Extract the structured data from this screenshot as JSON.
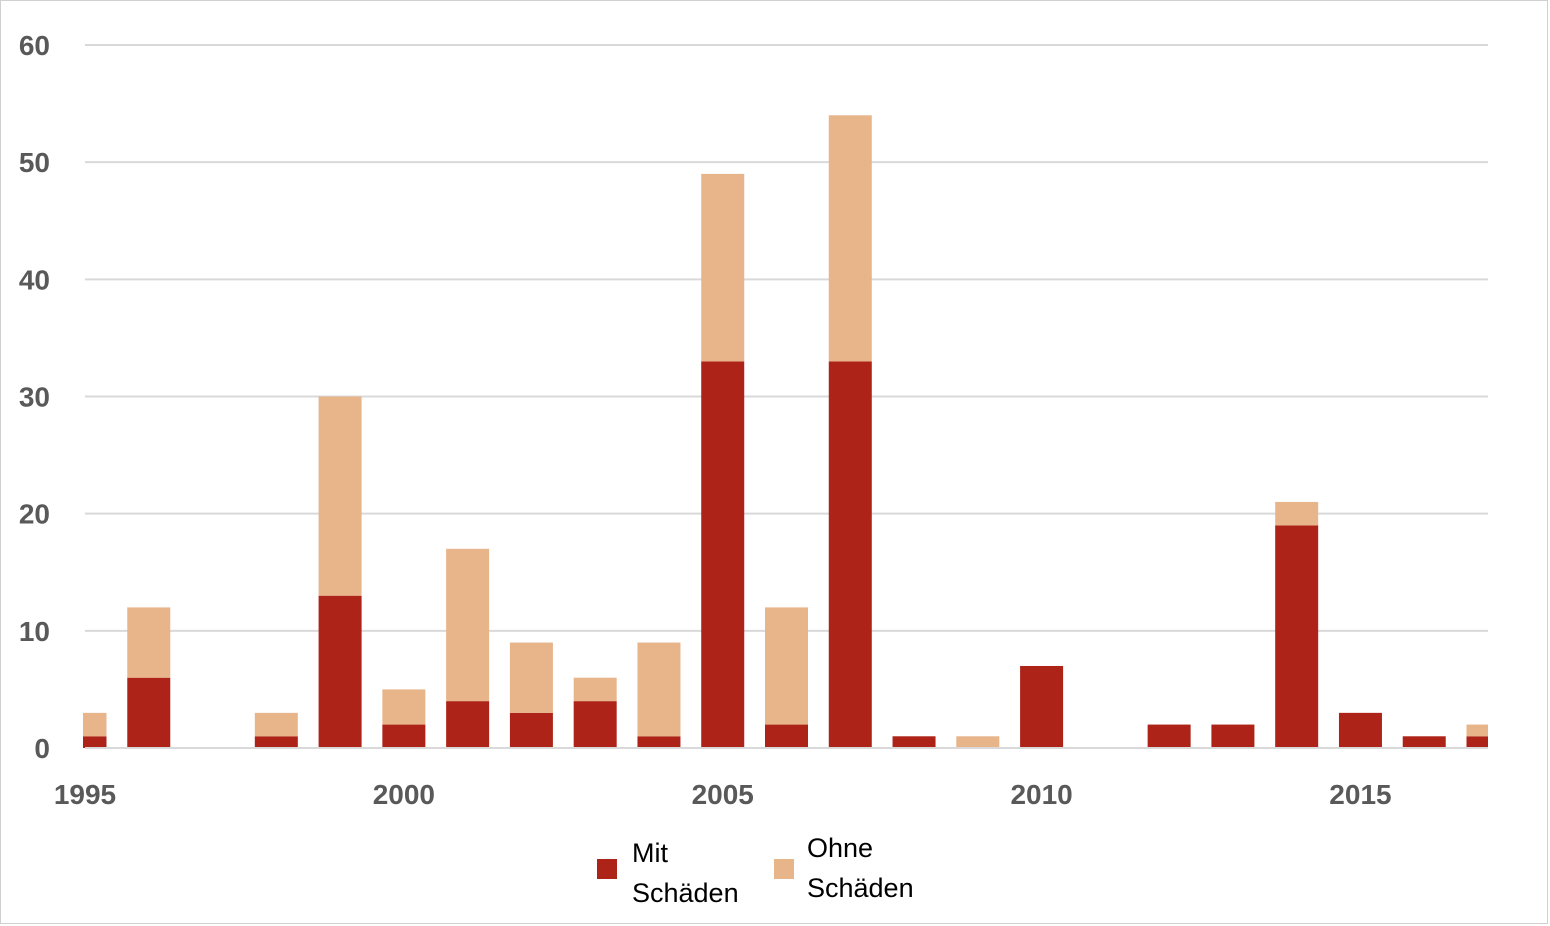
{
  "chart_data": {
    "type": "bar",
    "stacked": true,
    "title": "",
    "xlabel": "",
    "ylabel": "",
    "x": [
      1995,
      1996,
      1997,
      1998,
      1999,
      2000,
      2001,
      2002,
      2003,
      2004,
      2005,
      2006,
      2007,
      2008,
      2009,
      2010,
      2011,
      2012,
      2013,
      2014,
      2015,
      2016,
      2017
    ],
    "series": [
      {
        "name": "Mit Schäden",
        "color": "#AE2318",
        "values": [
          1,
          6,
          0,
          1,
          13,
          2,
          4,
          3,
          4,
          1,
          33,
          2,
          33,
          1,
          0,
          7,
          0,
          2,
          2,
          19,
          3,
          1,
          1
        ]
      },
      {
        "name": "Ohne Schäden",
        "color": "#E8B48A",
        "values": [
          2,
          6,
          0,
          2,
          17,
          3,
          13,
          6,
          2,
          8,
          16,
          10,
          21,
          0,
          1,
          0,
          0,
          0,
          0,
          2,
          0,
          0,
          1
        ]
      }
    ],
    "ylim": [
      0,
      60
    ],
    "yticks": [
      0,
      10,
      20,
      30,
      40,
      50,
      60
    ],
    "xticks": [
      1995,
      2000,
      2005,
      2010,
      2015
    ],
    "grid": true,
    "legend": {
      "placement": "bottom-center",
      "entries": [
        {
          "line1": "Mit",
          "line2": "Schäden",
          "color": "#AE2318"
        },
        {
          "line1": "Ohne",
          "line2": "Schäden",
          "color": "#E8B48A"
        }
      ]
    }
  }
}
